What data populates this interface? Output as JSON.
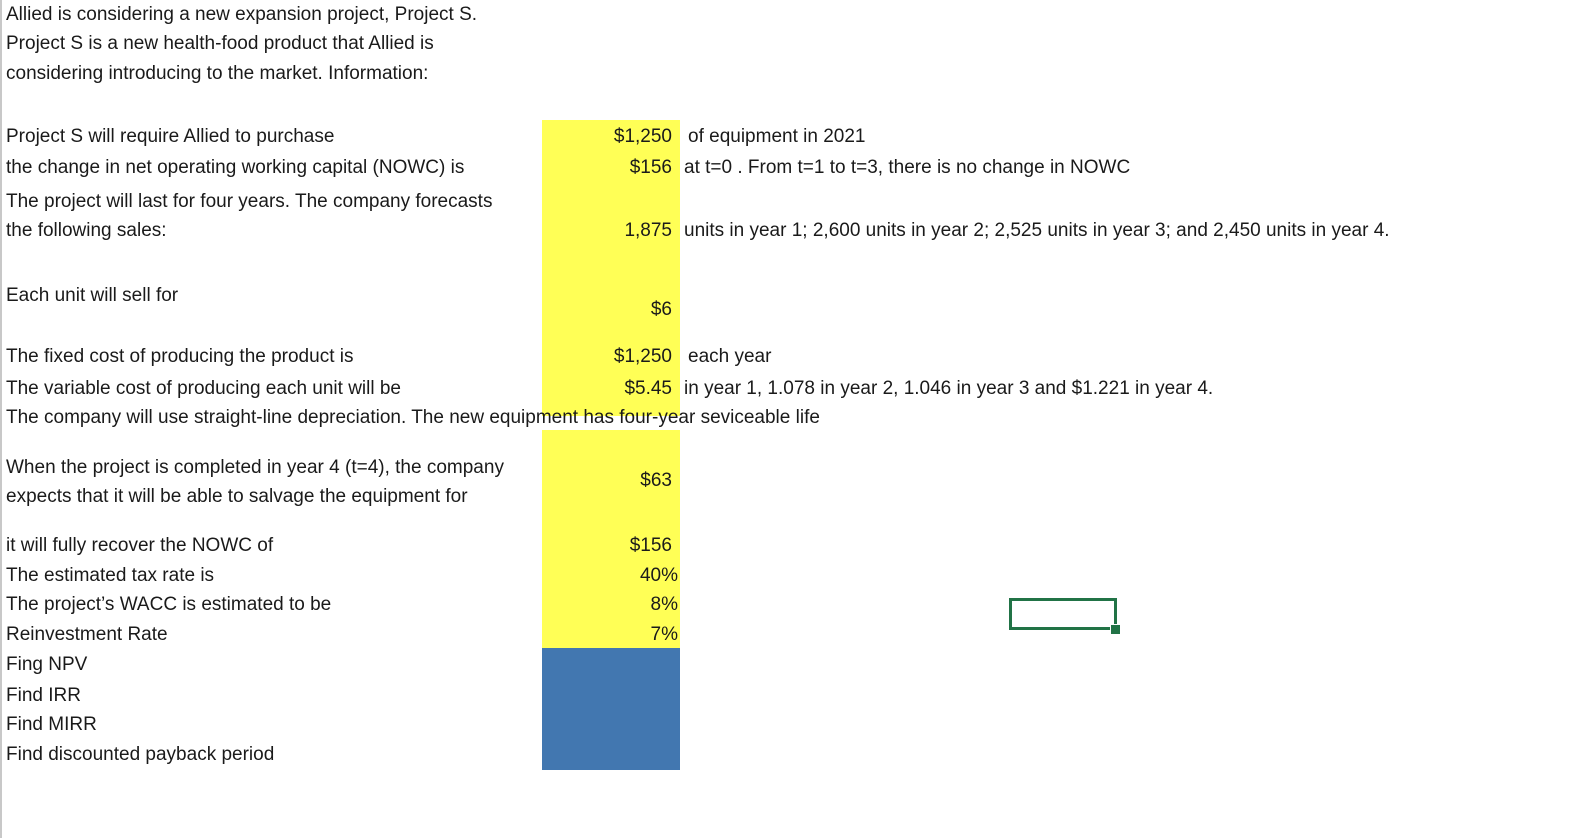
{
  "intro": {
    "line1": "Allied is considering a new expansion project, Project S.",
    "line2": "Project S is a new health-food product that Allied is",
    "line3": "considering introducing to the market. Information:"
  },
  "rows": {
    "equipment": {
      "label": "Project S will require Allied to purchase",
      "value": "$1,250",
      "note": "of equipment in 2021"
    },
    "nowc": {
      "label": "the change in net operating working capital (NOWC) is",
      "value": "$156",
      "note": "at t=0 . From t=1 to t=3, there is no change in NOWC"
    },
    "forecast": {
      "label1": "The project will last for four years. The company forecasts",
      "label2": "the following sales:",
      "value": "1,875",
      "note": "units in year 1; 2,600 units in year 2; 2,525 units in year 3; and 2,450 units in year 4."
    },
    "price": {
      "label": "Each unit will sell for",
      "value": "$6"
    },
    "fixed_cost": {
      "label": "The fixed cost of producing the product is",
      "value": "$1,250",
      "note": "each year"
    },
    "variable_cost": {
      "label": "The variable cost of producing each unit will be",
      "value": "$5.45",
      "note": "in year 1, 1.078 in year 2, 1.046 in year 3 and $1.221 in year 4."
    },
    "depreciation": {
      "label": "The company will use straight-line depreciation. The new equipment has four-year seviceable life"
    },
    "salvage": {
      "label1": "When the project is completed in year 4 (t=4), the company",
      "label2": "expects that it will be able to salvage the equipment for",
      "value": "$63"
    },
    "recover": {
      "label": "it will fully recover the NOWC of",
      "value": "$156"
    },
    "tax": {
      "label": "The estimated tax rate is",
      "value": "40%"
    },
    "wacc": {
      "label": "The project’s WACC is estimated to be",
      "value": "8%"
    },
    "reinvest": {
      "label": "Reinvestment Rate",
      "value": "7%"
    }
  },
  "tasks": {
    "npv": "Fing NPV",
    "irr": "Find IRR",
    "mirr": "Find MIRR",
    "payback": "Find discounted payback period"
  },
  "colors": {
    "input_fill": "#ffff56",
    "answer_fill": "#4277b0",
    "selection": "#217346"
  }
}
